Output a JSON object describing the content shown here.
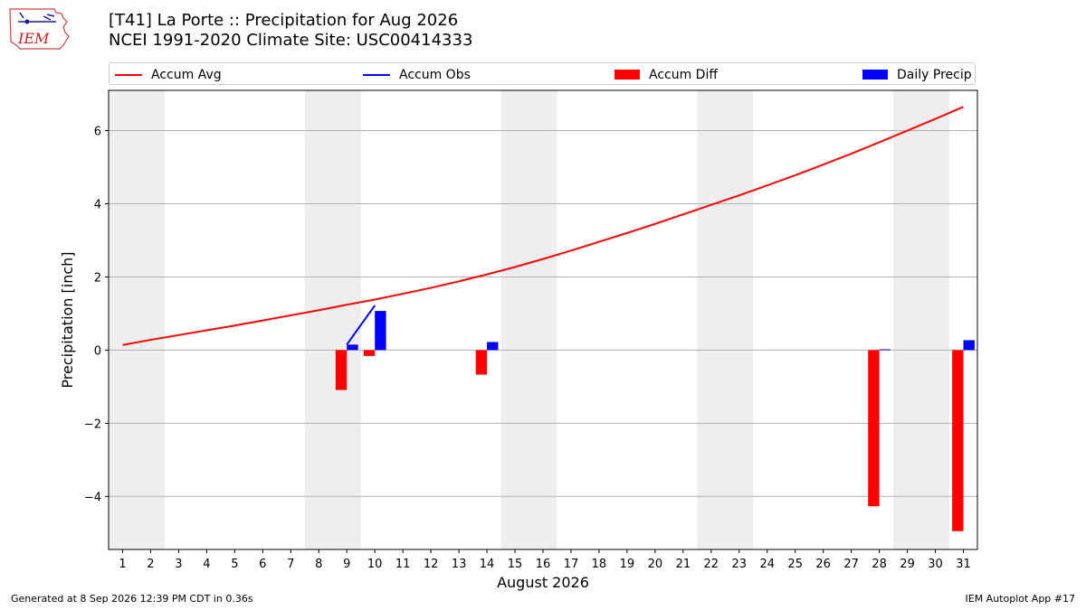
{
  "header": {
    "logo_text": "IEM",
    "title_line1": "[T41] La Porte :: Precipitation for Aug 2026",
    "title_line2": "NCEI 1991-2020 Climate Site: USC00414333"
  },
  "legend": [
    {
      "label": "Accum Avg",
      "kind": "line",
      "color": "#ff0000"
    },
    {
      "label": "Accum Obs",
      "kind": "line",
      "color": "#0000ff"
    },
    {
      "label": "Accum Diff",
      "kind": "bar",
      "color": "#ff0000"
    },
    {
      "label": "Daily Precip",
      "kind": "bar",
      "color": "#0000ff"
    }
  ],
  "footer": {
    "generated": "Generated at 8 Sep 2026 12:39 PM CDT in 0.36s",
    "app": "IEM Autoplot App #17"
  },
  "chart_data": {
    "type": "bar",
    "xlabel": "August 2026",
    "ylabel": "Precipitation [inch]",
    "xlim": [
      0.5,
      31.5
    ],
    "ylim": [
      -5.45,
      7.1
    ],
    "yticks": [
      -4,
      -2,
      0,
      2,
      4,
      6
    ],
    "ytick_labels": [
      "−4",
      "−2",
      "0",
      "2",
      "4",
      "6"
    ],
    "days": [
      1,
      2,
      3,
      4,
      5,
      6,
      7,
      8,
      9,
      10,
      11,
      12,
      13,
      14,
      15,
      16,
      17,
      18,
      19,
      20,
      21,
      22,
      23,
      24,
      25,
      26,
      27,
      28,
      29,
      30,
      31
    ],
    "weekend_bands": [
      [
        0.5,
        2.5
      ],
      [
        7.5,
        9.5
      ],
      [
        14.5,
        16.5
      ],
      [
        21.5,
        23.5
      ],
      [
        28.5,
        30.5
      ]
    ],
    "grid": "horizontal",
    "series": [
      {
        "name": "Accum Avg",
        "kind": "line",
        "color": "#ff0000",
        "x": [
          1,
          2,
          3,
          4,
          5,
          6,
          7,
          8,
          9,
          10,
          11,
          12,
          13,
          14,
          15,
          16,
          17,
          18,
          19,
          20,
          21,
          22,
          23,
          24,
          25,
          26,
          27,
          28,
          29,
          30,
          31
        ],
        "values": [
          0.14,
          0.28,
          0.41,
          0.54,
          0.67,
          0.81,
          0.95,
          1.09,
          1.24,
          1.38,
          1.54,
          1.7,
          1.88,
          2.07,
          2.27,
          2.49,
          2.72,
          2.96,
          3.2,
          3.45,
          3.71,
          3.97,
          4.23,
          4.5,
          4.78,
          5.07,
          5.37,
          5.68,
          6.0,
          6.32,
          6.65
        ]
      },
      {
        "name": "Accum Obs",
        "kind": "line",
        "color": "#0000ff",
        "x": [
          9,
          10
        ],
        "values": [
          0.15,
          1.22
        ]
      },
      {
        "name": "Accum Diff",
        "kind": "bar",
        "color": "#ff0000",
        "x": [
          9,
          10,
          14,
          28,
          31
        ],
        "values": [
          -1.09,
          -0.16,
          -0.67,
          -4.27,
          -4.95
        ]
      },
      {
        "name": "Daily Precip",
        "kind": "bar",
        "color": "#0000ff",
        "x": [
          9,
          10,
          14,
          28,
          31
        ],
        "values": [
          0.15,
          1.07,
          0.22,
          0.02,
          0.27
        ]
      }
    ]
  }
}
